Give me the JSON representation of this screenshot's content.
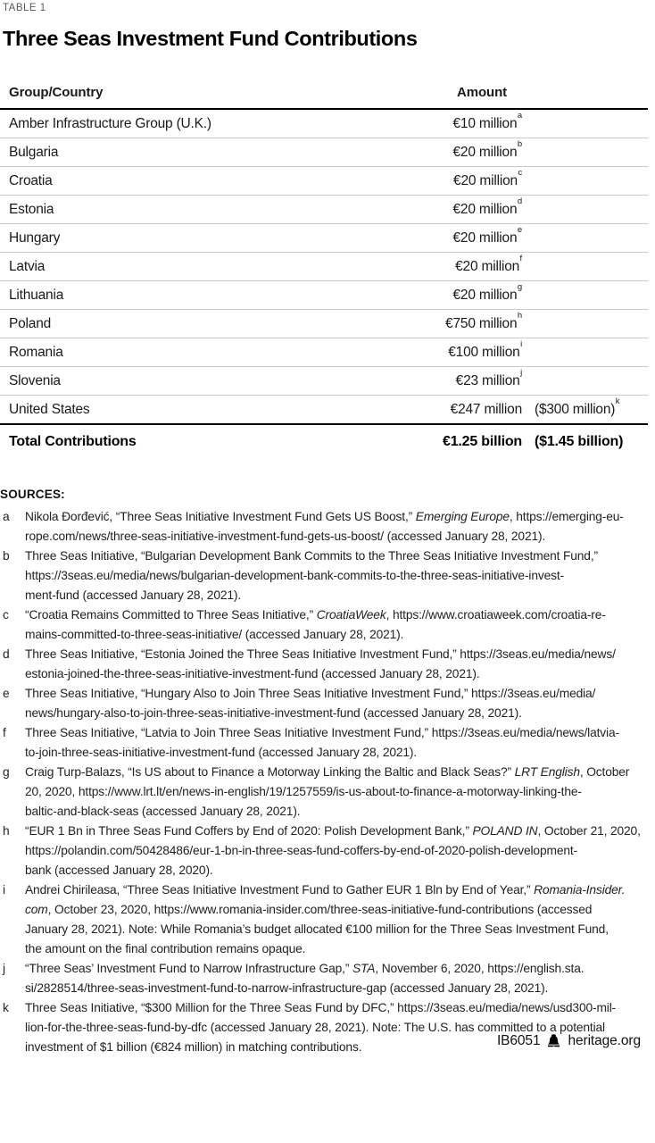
{
  "table_label": "TABLE 1",
  "title": "Three Seas Investment Fund Contributions",
  "table": {
    "col_group": "Group/Country",
    "col_amount": "Amount",
    "rows": [
      {
        "group": "Amber Infrastructure Group (U.K.)",
        "euro": "€10 million",
        "usd": "",
        "sup": "a"
      },
      {
        "group": "Bulgaria",
        "euro": "€20 million",
        "usd": "",
        "sup": "b"
      },
      {
        "group": "Croatia",
        "euro": "€20 million",
        "usd": "",
        "sup": "c"
      },
      {
        "group": "Estonia",
        "euro": "€20 million",
        "usd": "",
        "sup": "d"
      },
      {
        "group": "Hungary",
        "euro": "€20 million",
        "usd": "",
        "sup": "e"
      },
      {
        "group": "Latvia",
        "euro": "€20 million",
        "usd": "",
        "sup": "f"
      },
      {
        "group": "Lithuania",
        "euro": "€20 million",
        "usd": "",
        "sup": "g"
      },
      {
        "group": "Poland",
        "euro": "€750 million",
        "usd": "",
        "sup": "h"
      },
      {
        "group": "Romania",
        "euro": "€100 million",
        "usd": "",
        "sup": "i"
      },
      {
        "group": "Slovenia",
        "euro": "€23 million",
        "usd": "",
        "sup": "j"
      },
      {
        "group": "United States",
        "euro": "€247 million",
        "usd": "($300 million)",
        "sup": "k"
      }
    ],
    "total": {
      "label": "Total Contributions",
      "euro": "€1.25 billion",
      "usd": "($1.45 billion)"
    }
  },
  "sources": {
    "heading": "SOURCES:",
    "items": [
      {
        "label": "a",
        "lines": [
          [
            {
              "t": "Nikola Đorđević, “Three Seas Initiative Investment Fund Gets US Boost,” "
            },
            {
              "t": "Emerging Europe",
              "i": true
            },
            {
              "t": ", https://emerging-eu-"
            }
          ],
          [
            {
              "t": "rope.com/news/three-seas-initiative-investment-fund-gets-us-boost/ (accessed January 28, 2021)."
            }
          ]
        ]
      },
      {
        "label": "b",
        "lines": [
          [
            {
              "t": "Three Seas Initiative, “Bulgarian Development Bank Commits to the Three Seas Initiative Investment Fund,”"
            }
          ],
          [
            {
              "t": "https://3seas.eu/media/news/bulgarian-development-bank-commits-to-the-three-seas-initiative-invest-"
            }
          ],
          [
            {
              "t": "ment-fund (accessed January 28, 2021)."
            }
          ]
        ]
      },
      {
        "label": "c",
        "lines": [
          [
            {
              "t": "“Croatia Remains Committed to Three Seas Initiative,” "
            },
            {
              "t": "CroatiaWeek",
              "i": true
            },
            {
              "t": ", https://www.croatiaweek.com/croatia-re-"
            }
          ],
          [
            {
              "t": "mains-committed-to-three-seas-initiative/ (accessed January 28, 2021)."
            }
          ]
        ]
      },
      {
        "label": "d",
        "lines": [
          [
            {
              "t": "Three Seas Initiative, “Estonia Joined the Three Seas Initiative Investment Fund,” https://3seas.eu/media/news/"
            }
          ],
          [
            {
              "t": "estonia-joined-the-three-seas-initiative-investment-fund (accessed January 28, 2021)."
            }
          ]
        ]
      },
      {
        "label": "e",
        "lines": [
          [
            {
              "t": "Three Seas Initiative, “Hungary Also to Join Three Seas Initiative Investment Fund,” https://3seas.eu/media/"
            }
          ],
          [
            {
              "t": "news/hungary-also-to-join-three-seas-initiative-investment-fund (accessed January 28, 2021)."
            }
          ]
        ]
      },
      {
        "label": "f",
        "lines": [
          [
            {
              "t": "Three Seas Initiative, “Latvia to Join Three Seas Initiative Investment Fund,” https://3seas.eu/media/news/latvia-"
            }
          ],
          [
            {
              "t": "to-join-three-seas-initiative-investment-fund (accessed January 28, 2021)."
            }
          ]
        ]
      },
      {
        "label": "g",
        "lines": [
          [
            {
              "t": "Craig Turp-Balazs, “Is US about to Finance a Motorway Linking the Baltic and Black Seas?” "
            },
            {
              "t": "LRT English",
              "i": true
            },
            {
              "t": ", October"
            }
          ],
          [
            {
              "t": "20, 2020, https://www.lrt.lt/en/news-in-english/19/1257559/is-us-about-to-finance-a-motorway-linking-the-"
            }
          ],
          [
            {
              "t": "baltic-and-black-seas (accessed January 28, 2021)."
            }
          ]
        ]
      },
      {
        "label": "h",
        "lines": [
          [
            {
              "t": "“EUR 1 Bn in Three Seas Fund Coffers by End of 2020: Polish Development Bank,” "
            },
            {
              "t": "POLAND IN",
              "i": true
            },
            {
              "t": ", October 21, 2020,"
            }
          ],
          [
            {
              "t": "https://polandin.com/50428486/eur-1-bn-in-three-seas-fund-coffers-by-end-of-2020-polish-development-"
            }
          ],
          [
            {
              "t": "bank (accessed January 28, 2020)."
            }
          ]
        ]
      },
      {
        "label": "i",
        "lines": [
          [
            {
              "t": "Andrei Chirileasa, “Three Seas Initiative Investment Fund to Gather EUR 1 Bln by End of Year,” "
            },
            {
              "t": "Romania-Insider.",
              "i": true
            }
          ],
          [
            {
              "t": "com",
              "i": true
            },
            {
              "t": ", October 23, 2020, https://www.romania-insider.com/three-seas-initiative-fund-contributions (accessed"
            }
          ],
          [
            {
              "t": "January 28, 2021). Note: While Romania’s budget allocated €100 million for the Three Seas Investment Fund,"
            }
          ],
          [
            {
              "t": "the amount on the final contribution remains opaque."
            }
          ]
        ]
      },
      {
        "label": "j",
        "lines": [
          [
            {
              "t": "“Three Seas’ Investment Fund to Narrow Infrastructure Gap,” "
            },
            {
              "t": "STA",
              "i": true
            },
            {
              "t": ", November 6, 2020, https://english.sta."
            }
          ],
          [
            {
              "t": "si/2828514/three-seas-investment-fund-to-narrow-infrastructure-gap (accessed January 28, 2021)."
            }
          ]
        ]
      },
      {
        "label": "k",
        "lines": [
          [
            {
              "t": "Three Seas Initiative, “$300 Million for the Three Seas Fund by DFC,” https://3seas.eu/media/news/usd300-mil-"
            }
          ],
          [
            {
              "t": "lion-for-the-three-seas-fund-by-dfc (accessed January 28, 2021). Note: The U.S. has committed to a potential"
            }
          ],
          [
            {
              "t": "investment of $1 billion (€824 million) in matching contributions."
            }
          ]
        ]
      }
    ]
  },
  "footer": {
    "doc_id": "IB6051",
    "bell_icon": "liberty-bell-icon",
    "site": "heritage.org"
  },
  "colors": {
    "text": "#1a1a1a",
    "muted_label": "#58595a",
    "rule_heavy": "#000000",
    "rule_light": "#cbcbcb"
  }
}
